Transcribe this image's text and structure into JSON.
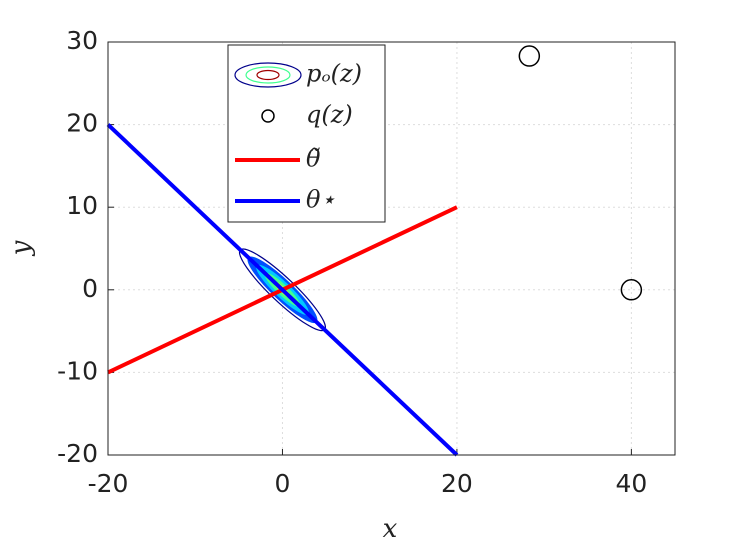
{
  "chart_data": {
    "type": "line",
    "xlabel": "x",
    "ylabel": "y",
    "xlim": [
      -20,
      45
    ],
    "ylim": [
      -20,
      30
    ],
    "xticks": [
      -20,
      0,
      20,
      40
    ],
    "yticks": [
      -20,
      -10,
      0,
      10,
      20,
      30
    ],
    "grid": true,
    "series": [
      {
        "name": "pₒ(z)",
        "type": "contour",
        "colors": [
          "#00008b",
          "#0050ff",
          "#00c8ff",
          "#40ff90",
          "#b0ff40"
        ],
        "x": [
          0
        ],
        "values": [
          0
        ]
      },
      {
        "name": "q(z)",
        "type": "scatter",
        "color": "#000000",
        "x": [
          28.3,
          40
        ],
        "values": [
          28.3,
          0
        ]
      },
      {
        "name": "θ̃",
        "type": "line",
        "color": "#ff0000",
        "x": [
          -20,
          20
        ],
        "values": [
          -10,
          10
        ]
      },
      {
        "name": "θ⋆",
        "type": "line",
        "color": "#0000ff",
        "x": [
          -20,
          20
        ],
        "values": [
          20,
          -20
        ]
      }
    ]
  }
}
